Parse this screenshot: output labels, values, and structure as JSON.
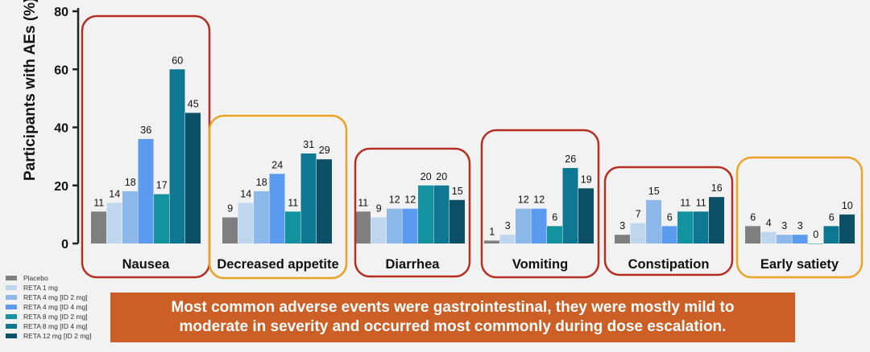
{
  "colors": {
    "series": [
      "#7f7f7f",
      "#bfd7ee",
      "#8db9ea",
      "#5b9bef",
      "#13939f",
      "#0e7893",
      "#0c5066"
    ],
    "highlight_red": "#b52e22",
    "highlight_orange": "#eba324",
    "banner": "#cc5f25"
  },
  "banner": {
    "line1": "Most common adverse events were gastrointestinal, they were mostly mild to",
    "line2": "moderate in severity and occurred most commonly during dose escalation."
  },
  "chart_data": {
    "type": "bar",
    "ylabel": "Participants with AEs (%)",
    "ylim": [
      0,
      80
    ],
    "yticks": [
      0,
      20,
      40,
      60,
      80
    ],
    "categories": [
      "Nausea",
      "Decreased appetite",
      "Diarrhea",
      "Vomiting",
      "Constipation",
      "Early satiety"
    ],
    "category_highlight": [
      "red",
      "orange",
      "red",
      "red",
      "red",
      "orange"
    ],
    "series": [
      {
        "name": "Placebo",
        "values": [
          11,
          9,
          11,
          1,
          3,
          6
        ]
      },
      {
        "name": "RETA 1 mg",
        "values": [
          14,
          14,
          9,
          3,
          7,
          4
        ]
      },
      {
        "name": "RETA 4 mg [ID 2 mg]",
        "values": [
          18,
          18,
          12,
          12,
          15,
          3
        ]
      },
      {
        "name": "RETA 4 mg [ID 4 mg]",
        "values": [
          36,
          24,
          12,
          12,
          6,
          3
        ]
      },
      {
        "name": "RETA 8 mg [ID 2 mg]",
        "values": [
          17,
          11,
          20,
          6,
          11,
          0
        ]
      },
      {
        "name": "RETA 8 mg [ID 4 mg]",
        "values": [
          60,
          31,
          20,
          26,
          11,
          6
        ]
      },
      {
        "name": "RETA 12 mg [ID 2 mg]",
        "values": [
          45,
          29,
          15,
          19,
          16,
          10
        ]
      }
    ],
    "legend_position": "bottom-left",
    "grid": false
  }
}
